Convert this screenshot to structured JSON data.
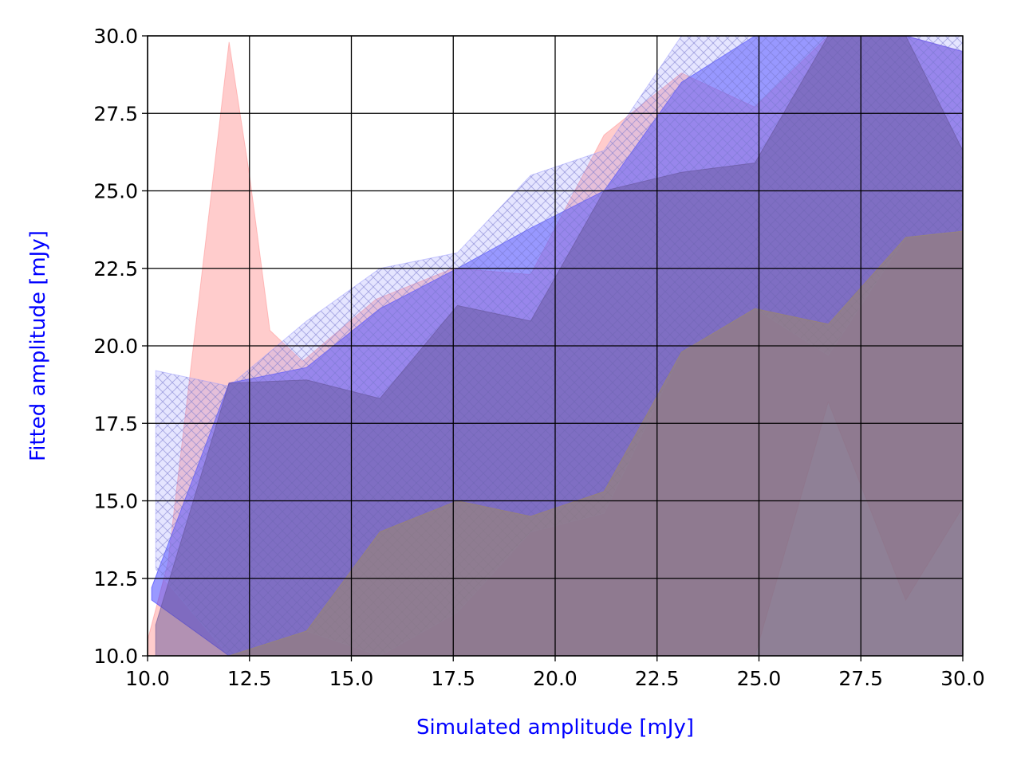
{
  "chart_data": {
    "type": "area",
    "xlabel": "Simulated amplitude [mJy]",
    "ylabel": "Fitted amplitude [mJy]",
    "xlim": [
      10.0,
      30.0
    ],
    "ylim": [
      10.0,
      30.0
    ],
    "xticks": [
      "10.0",
      "12.5",
      "15.0",
      "17.5",
      "20.0",
      "22.5",
      "25.0",
      "27.5",
      "30.0"
    ],
    "yticks": [
      "10.0",
      "12.5",
      "15.0",
      "17.5",
      "20.0",
      "22.5",
      "25.0",
      "27.5",
      "30.0"
    ],
    "grid": true,
    "label_color": "#0000ff",
    "series": [
      {
        "color": "#ff9999",
        "hatch": false,
        "x": [
          10.0,
          10.5,
          12.0,
          12.5,
          13.0,
          13.8,
          15.6,
          17.5,
          19.4,
          21.2,
          23.1,
          24.9,
          26.7,
          28.6,
          30.0
        ],
        "upper": [
          10.5,
          13.0,
          29.8,
          25.5,
          20.5,
          19.5,
          21.5,
          22.5,
          22.3,
          26.8,
          28.8,
          27.7,
          30.0,
          30.0,
          29.5
        ],
        "lower": [
          10.0,
          10.0,
          10.0,
          10.0,
          10.0,
          10.0,
          10.0,
          10.0,
          10.0,
          10.0,
          10.0,
          10.0,
          18.2,
          11.8,
          14.8
        ]
      },
      {
        "color": "#3333ff",
        "hatch": false,
        "x": [
          10.1,
          12.0,
          13.9,
          15.7,
          17.6,
          19.4,
          21.2,
          23.1,
          24.9,
          26.7,
          28.6,
          30.0
        ],
        "upper": [
          12.2,
          18.8,
          19.3,
          21.2,
          22.5,
          23.8,
          25.0,
          28.5,
          30.0,
          30.0,
          30.0,
          29.5
        ],
        "lower": [
          11.8,
          10.0,
          10.0,
          10.0,
          10.0,
          10.0,
          10.0,
          10.0,
          10.0,
          10.0,
          10.0,
          10.0
        ]
      },
      {
        "color": "#9999ff",
        "hatch": true,
        "x": [
          10.2,
          12.0,
          13.9,
          15.7,
          17.6,
          19.4,
          21.2,
          23.1,
          24.9,
          26.7,
          28.6,
          30.0
        ],
        "upper": [
          19.2,
          18.7,
          20.8,
          22.5,
          23.0,
          25.5,
          26.3,
          30.0,
          30.0,
          30.0,
          30.0,
          30.0
        ],
        "lower": [
          12.8,
          10.0,
          10.8,
          10.0,
          11.4,
          14.0,
          14.6,
          19.8,
          21.2,
          19.7,
          23.5,
          23.7
        ]
      },
      {
        "color": "#665599",
        "hatch": false,
        "x": [
          10.2,
          12.0,
          13.9,
          15.7,
          17.6,
          19.4,
          21.2,
          23.1,
          24.9,
          26.7,
          28.6,
          30.0
        ],
        "upper": [
          11.0,
          18.8,
          18.9,
          18.3,
          21.3,
          20.8,
          25.0,
          25.6,
          25.9,
          30.0,
          30.0,
          26.3
        ],
        "lower": [
          10.0,
          10.0,
          10.0,
          10.0,
          10.0,
          10.0,
          10.0,
          10.0,
          10.0,
          10.0,
          10.0,
          10.0
        ]
      },
      {
        "color": "#a08a60",
        "hatch": false,
        "x": [
          10.2,
          12.0,
          13.9,
          15.7,
          17.6,
          19.4,
          21.2,
          23.1,
          24.9,
          26.7,
          28.6,
          30.0
        ],
        "upper": [
          10.0,
          10.0,
          10.8,
          14.0,
          15.0,
          14.5,
          15.3,
          19.8,
          21.2,
          20.7,
          23.5,
          23.7
        ],
        "lower": [
          10.0,
          10.0,
          10.0,
          10.0,
          10.0,
          10.0,
          10.0,
          10.0,
          10.0,
          10.0,
          10.0,
          10.0
        ]
      }
    ]
  }
}
